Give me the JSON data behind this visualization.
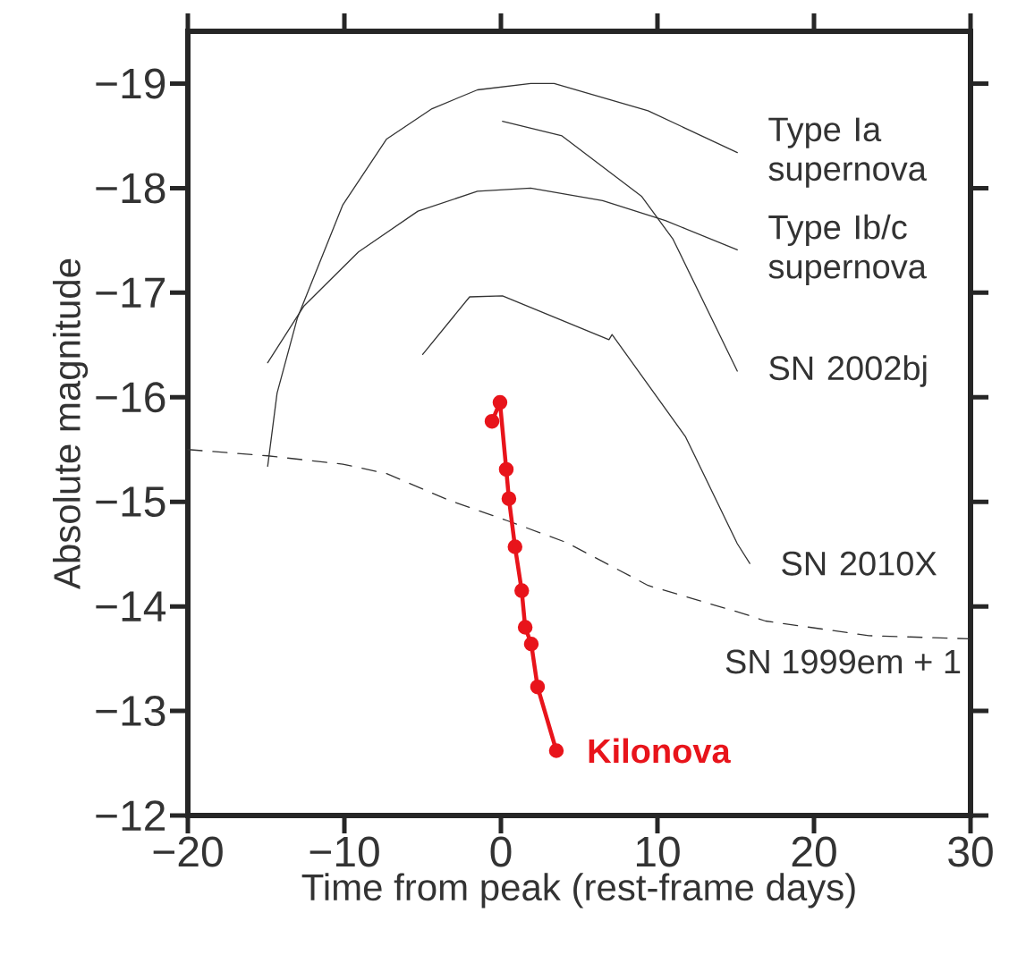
{
  "chart_data": {
    "type": "line",
    "xlabel": "Time from peak (rest-frame days)",
    "ylabel": "Absolute magnitude",
    "xlim": [
      -20,
      30
    ],
    "ylim": [
      -12,
      -19.5
    ],
    "xticks": [
      {
        "value": -20,
        "label": "−20"
      },
      {
        "value": -10,
        "label": "−10"
      },
      0,
      10,
      20,
      30
    ],
    "yticks": [
      {
        "value": -19,
        "label": "−19"
      },
      {
        "value": -18,
        "label": "−18"
      },
      {
        "value": -17,
        "label": "−17"
      },
      {
        "value": -16,
        "label": "−16"
      },
      {
        "value": -15,
        "label": "−15"
      },
      {
        "value": -14,
        "label": "−14"
      },
      {
        "value": -13,
        "label": "−13"
      },
      {
        "value": -12,
        "label": "−12"
      }
    ],
    "grid": false,
    "marker": "none",
    "line_style": "solid",
    "series": [
      {
        "name": "Type Ia supernova",
        "color": "#333333",
        "x": [
          -14.9,
          -14.3,
          -13.0,
          -10.1,
          -7.3,
          -4.4,
          -1.5,
          1.9,
          3.4,
          9.4,
          15.1
        ],
        "values": [
          -15.34,
          -16.04,
          -16.76,
          -17.84,
          -18.47,
          -18.76,
          -18.94,
          -19.0,
          -19.0,
          -18.74,
          -18.34
        ]
      },
      {
        "name": "Type Ib/c supernova",
        "color": "#333333",
        "x": [
          -14.9,
          -12.6,
          -9.1,
          -5.3,
          -1.5,
          1.9,
          6.5,
          10.5,
          15.1
        ],
        "values": [
          -16.33,
          -16.87,
          -17.39,
          -17.78,
          -17.97,
          -18.0,
          -17.88,
          -17.69,
          -17.41
        ]
      },
      {
        "name": "SN 2002bj",
        "color": "#333333",
        "x": [
          0.1,
          3.9,
          9.0,
          11.0,
          15.1
        ],
        "values": [
          -18.64,
          -18.5,
          -17.92,
          -17.51,
          -16.25
        ]
      },
      {
        "name": "SN 2010X",
        "color": "#333333",
        "x": [
          -5.0,
          -2.0,
          0.1,
          6.9,
          7.1,
          11.8,
          15.1,
          15.9
        ],
        "values": [
          -16.41,
          -16.96,
          -16.97,
          -16.55,
          -16.6,
          -15.62,
          -14.6,
          -14.41
        ]
      },
      {
        "name": "SN 1999em + 1",
        "color": "#333333",
        "line_style": "dashed",
        "x": [
          -20,
          -14.9,
          -10.1,
          -7.3,
          -3.4,
          0.4,
          4.2,
          9.4,
          15.5,
          16.9,
          23.5,
          29.9
        ],
        "values": [
          -15.5,
          -15.44,
          -15.36,
          -15.27,
          -15.02,
          -14.82,
          -14.61,
          -14.2,
          -13.93,
          -13.86,
          -13.72,
          -13.69
        ]
      },
      {
        "name": "Kilonova",
        "color": "#e8141b",
        "marker": "circle",
        "x": [
          -0.57,
          -0.06,
          0.34,
          0.51,
          0.9,
          1.33,
          1.55,
          1.94,
          2.34,
          3.54
        ],
        "values": [
          -15.77,
          -15.95,
          -15.31,
          -15.03,
          -14.57,
          -14.15,
          -13.8,
          -13.64,
          -13.23,
          -12.62
        ]
      }
    ]
  }
}
